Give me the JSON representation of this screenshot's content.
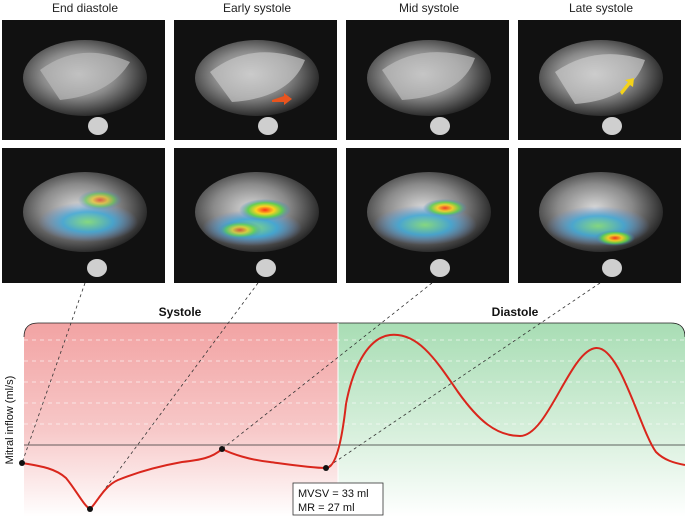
{
  "columns": [
    {
      "title": "End diastole"
    },
    {
      "title": "Early systole"
    },
    {
      "title": "Mid systole"
    },
    {
      "title": "Late systole"
    }
  ],
  "phases": {
    "systole": {
      "label": "Systole",
      "color": "#f2a5a5"
    },
    "diastole": {
      "label": "Diastole",
      "color": "#a9deb6"
    }
  },
  "ylabel": "Mitral inflow (ml/s)",
  "annotation": {
    "line1": "MVSV = 33 ml",
    "line2": "MR = 27 ml"
  },
  "arrows": {
    "early_systole": {
      "color": "#e8541e"
    },
    "late_systole": {
      "color": "#f3d21a"
    }
  },
  "curve": {
    "color": "#d9261c"
  }
}
